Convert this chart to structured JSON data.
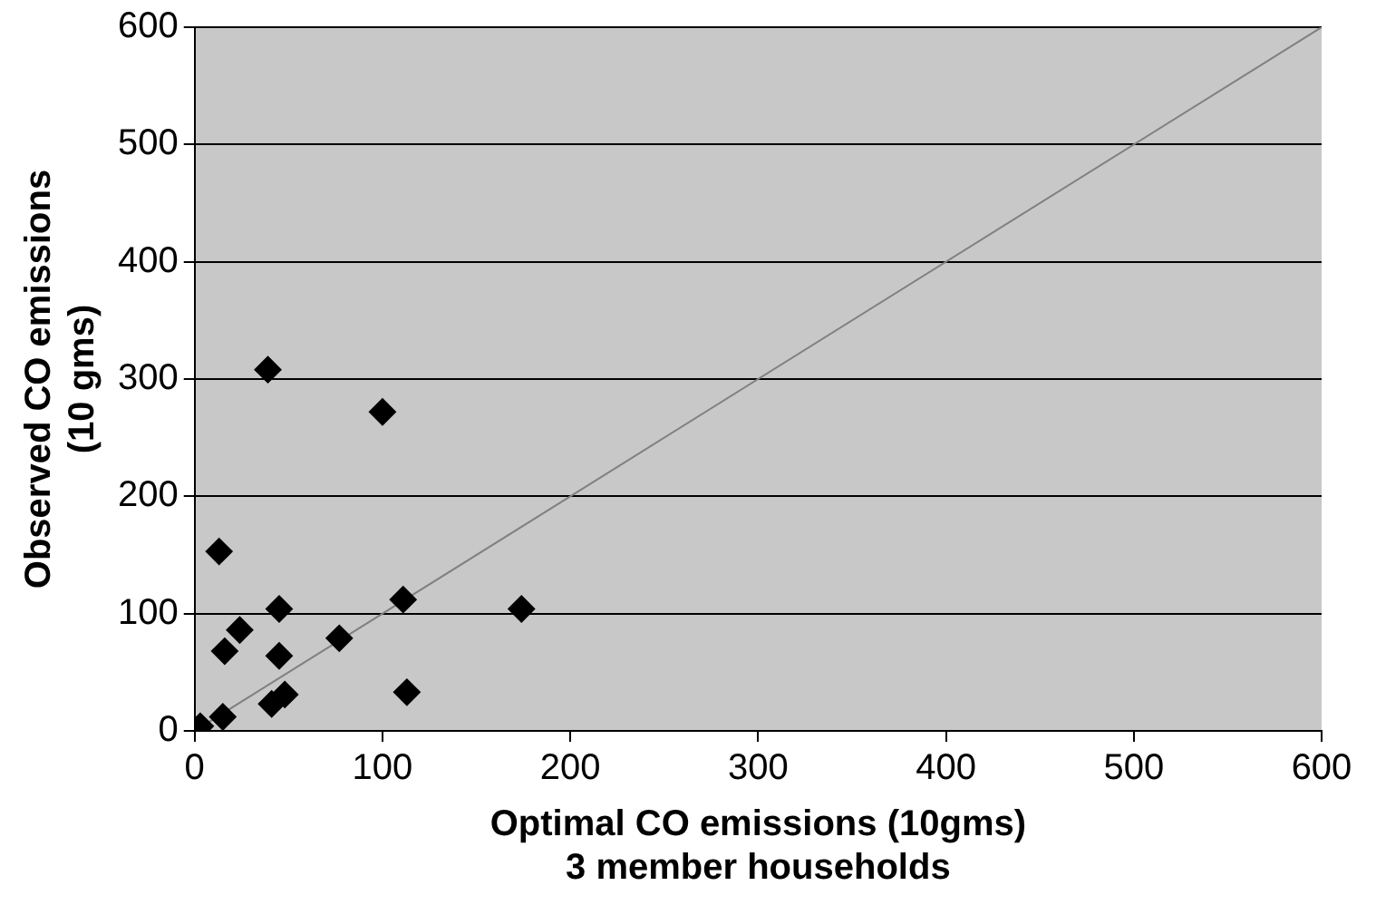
{
  "chart_data": {
    "type": "scatter",
    "xlabel": "Optimal CO emissions (10gms)\n3 member households",
    "ylabel": "Observed CO emissions\n(10 gms)",
    "xlim": [
      0,
      600
    ],
    "ylim": [
      0,
      600
    ],
    "xticks": [
      0,
      100,
      200,
      300,
      400,
      500,
      600
    ],
    "yticks": [
      0,
      100,
      200,
      300,
      400,
      500,
      600
    ],
    "grid": "y",
    "legend": false,
    "marker": "diamond",
    "series": [
      {
        "color": "#000000",
        "x": [
          39,
          100,
          13,
          45,
          111,
          174,
          24,
          16,
          45,
          77,
          48,
          41,
          113,
          15,
          3
        ],
        "values": [
          308,
          272,
          153,
          104,
          112,
          104,
          86,
          68,
          64,
          79,
          31,
          23,
          33,
          12,
          4
        ]
      },
      {
        "type": "line",
        "color": "#808080",
        "marker": "none",
        "x": [
          0,
          600
        ],
        "values": [
          0,
          600
        ]
      }
    ]
  }
}
